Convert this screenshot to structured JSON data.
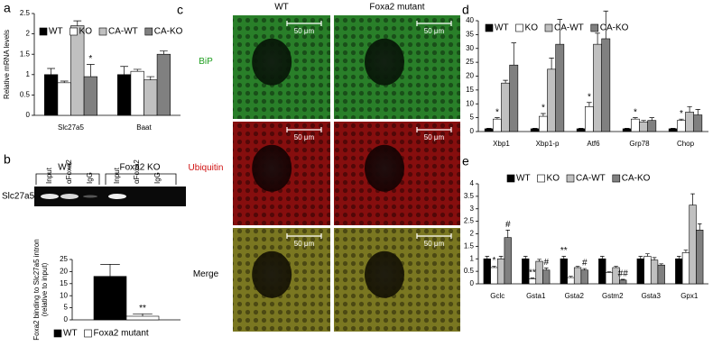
{
  "panel_labels": [
    "a",
    "b",
    "c",
    "d",
    "e"
  ],
  "gel": {
    "groups": [
      "WT",
      "Foxa2  KO"
    ],
    "lanes": [
      "Input",
      "αFoxa2",
      "IgG",
      "Input",
      "αFoxa2",
      "IgG"
    ],
    "band_label": "Slc27a5"
  },
  "micrographs": {
    "columns": [
      "WT",
      "Foxa2  mutant"
    ],
    "rows": [
      {
        "label": "BiP",
        "color": "#1f9e1f"
      },
      {
        "label": "Ubiquitin",
        "color": "#d01010"
      },
      {
        "label": "Merge",
        "color": "#000000"
      }
    ],
    "scale_bar": "50 μm"
  },
  "chart_data": [
    {
      "type": "bar",
      "ylabel": "Relative mRNA levels",
      "categories": [
        "Slc27a5",
        "Baat"
      ],
      "ylim": [
        0,
        2.5
      ],
      "yticks": [
        0,
        0.5,
        1,
        1.5,
        2,
        2.5
      ],
      "legend": "top-left",
      "series": [
        {
          "name": "WT",
          "color": "#000000",
          "values": [
            1.0,
            1.0
          ],
          "errors": [
            0.15,
            0.2
          ],
          "labels": [
            null,
            null
          ]
        },
        {
          "name": "KO",
          "color": "#ffffff",
          "values": [
            0.8,
            1.08
          ],
          "errors": [
            0.04,
            0.05
          ],
          "labels": [
            null,
            null
          ]
        },
        {
          "name": "CA-WT",
          "color": "#c0c0c0",
          "values": [
            2.2,
            0.87
          ],
          "errors": [
            0.12,
            0.08
          ],
          "labels": [
            null,
            null
          ]
        },
        {
          "name": "CA-KO",
          "color": "#808080",
          "values": [
            0.95,
            1.5
          ],
          "errors": [
            0.3,
            0.08
          ],
          "labels": [
            "*",
            null
          ]
        }
      ]
    },
    {
      "type": "bar",
      "ylabel": [
        "Foxa2 binding to Slc27a5 intron",
        "(relative to input)"
      ],
      "categories": [
        null
      ],
      "ylim": [
        0,
        25
      ],
      "yticks": [
        0,
        5,
        10,
        15,
        20,
        25
      ],
      "legend": "bottom",
      "series": [
        {
          "name": "WT",
          "color": "#000000",
          "values": [
            18
          ],
          "errors": [
            5
          ],
          "labels": [
            null
          ]
        },
        {
          "name": "Foxa2 mutant",
          "color": "#ffffff",
          "values": [
            1.5
          ],
          "errors": [
            1
          ],
          "labels": [
            "**"
          ]
        }
      ]
    },
    {
      "type": "bar",
      "categories": [
        "Xbp1",
        "Xbp1-p",
        "Atf6",
        "Grp78",
        "Chop"
      ],
      "ylim": [
        0,
        40
      ],
      "yticks": [
        0,
        5,
        10,
        15,
        20,
        25,
        30,
        35,
        40
      ],
      "legend": "top-left",
      "series": [
        {
          "name": "WT",
          "color": "#000000",
          "values": [
            1,
            1,
            1,
            1,
            1
          ],
          "errors": [
            0.2,
            0.2,
            0.2,
            0.2,
            0.2
          ],
          "labels": [
            null,
            null,
            null,
            null,
            null
          ]
        },
        {
          "name": "KO",
          "color": "#ffffff",
          "values": [
            4.5,
            5.5,
            9,
            4.5,
            4
          ],
          "errors": [
            0.5,
            1,
            1.5,
            0.5,
            0.5
          ],
          "labels": [
            "*",
            "*",
            "*",
            "*",
            "*"
          ]
        },
        {
          "name": "CA-WT",
          "color": "#c0c0c0",
          "values": [
            17.5,
            22.5,
            31.5,
            3.5,
            7
          ],
          "errors": [
            1,
            4,
            4,
            0.5,
            2
          ],
          "labels": [
            null,
            null,
            null,
            null,
            null
          ]
        },
        {
          "name": "CA-KO",
          "color": "#808080",
          "values": [
            24,
            31.5,
            33.5,
            4,
            6
          ],
          "errors": [
            8,
            9,
            10,
            1,
            2
          ],
          "labels": [
            null,
            null,
            null,
            null,
            null
          ]
        }
      ]
    },
    {
      "type": "bar",
      "categories": [
        "Gclc",
        "Gsta1",
        "Gsta2",
        "Gstm2",
        "Gsta3",
        "Gpx1"
      ],
      "ylim": [
        0,
        4
      ],
      "yticks": [
        0,
        0.5,
        1,
        1.5,
        2,
        2.5,
        3,
        3.5,
        4
      ],
      "legend": "top-left",
      "series": [
        {
          "name": "WT",
          "color": "#000000",
          "values": [
            1.0,
            1.0,
            1.0,
            1.0,
            1.0,
            1.0
          ],
          "errors": [
            0.1,
            0.1,
            0.1,
            0.1,
            0.1,
            0.1
          ],
          "labels": [
            null,
            null,
            "**",
            null,
            null,
            null
          ]
        },
        {
          "name": "KO",
          "color": "#ffffff",
          "values": [
            0.65,
            0.2,
            0.25,
            0.45,
            1.1,
            1.25
          ],
          "errors": [
            0.05,
            0.03,
            0.05,
            0.03,
            0.1,
            0.1
          ],
          "labels": [
            "*",
            "**",
            null,
            null,
            null,
            null
          ]
        },
        {
          "name": "CA-WT",
          "color": "#c0c0c0",
          "values": [
            1.0,
            0.9,
            0.65,
            0.65,
            0.95,
            3.15
          ],
          "errors": [
            0.1,
            0.08,
            0.05,
            0.05,
            0.1,
            0.45
          ],
          "labels": [
            null,
            null,
            null,
            null,
            null,
            null
          ]
        },
        {
          "name": "CA-KO",
          "color": "#808080",
          "values": [
            1.85,
            0.55,
            0.55,
            0.15,
            0.75,
            2.15
          ],
          "errors": [
            0.3,
            0.08,
            0.06,
            0.03,
            0.05,
            0.25
          ],
          "labels": [
            "#",
            "#",
            "#",
            "##",
            null,
            null
          ]
        }
      ]
    }
  ]
}
